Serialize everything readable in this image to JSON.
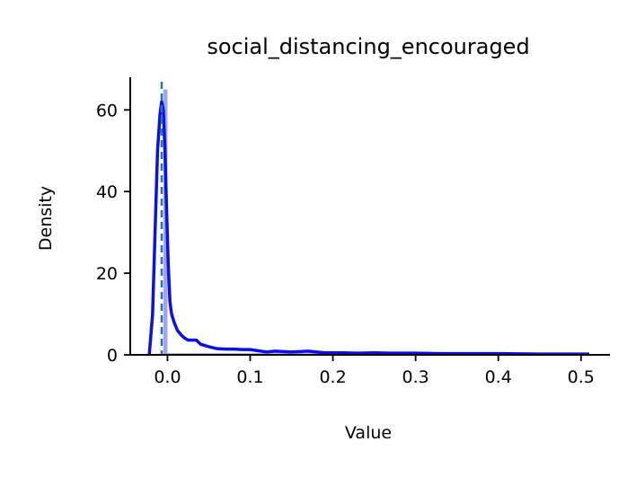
{
  "chart_data": {
    "type": "area",
    "title": "social_distancing_encouraged",
    "xlabel": "Value",
    "ylabel": "Density",
    "xlim": [
      -0.045,
      0.535
    ],
    "ylim": [
      0,
      68
    ],
    "xticks": [
      0.0,
      0.1,
      0.2,
      0.3,
      0.4,
      0.5
    ],
    "xtick_labels": [
      "0.0",
      "0.1",
      "0.2",
      "0.3",
      "0.4",
      "0.5"
    ],
    "yticks": [
      0,
      20,
      40,
      60
    ],
    "ytick_labels": [
      "0",
      "20",
      "40",
      "60"
    ],
    "grid": false,
    "histogram": {
      "color": "#a3a3f5",
      "bins": [
        {
          "x0": -0.005,
          "x1": 0.0,
          "value": 65
        }
      ],
      "tail_level": 0.4,
      "tail_range": [
        0.0,
        0.51
      ]
    },
    "kde": {
      "color": "#0a10e8",
      "x": [
        -0.022,
        -0.018,
        -0.015,
        -0.012,
        -0.009,
        -0.007,
        -0.005,
        -0.003,
        -0.001,
        0.001,
        0.003,
        0.005,
        0.008,
        0.012,
        0.016,
        0.02,
        0.025,
        0.03,
        0.035,
        0.04,
        0.05,
        0.06,
        0.07,
        0.08,
        0.09,
        0.1,
        0.11,
        0.12,
        0.13,
        0.15,
        0.17,
        0.19,
        0.21,
        0.23,
        0.25,
        0.27,
        0.3,
        0.33,
        0.36,
        0.4,
        0.45,
        0.5,
        0.51
      ],
      "y": [
        0,
        10,
        30,
        50,
        59,
        62,
        60,
        50,
        35,
        22,
        13,
        10,
        8,
        6,
        5,
        4.2,
        3.6,
        3.6,
        3.6,
        2.6,
        2.0,
        1.5,
        1.4,
        1.4,
        1.3,
        1.3,
        1.0,
        0.7,
        0.9,
        0.7,
        0.9,
        0.5,
        0.5,
        0.4,
        0.5,
        0.4,
        0.4,
        0.3,
        0.3,
        0.3,
        0.2,
        0.2,
        0.2
      ]
    },
    "reference_line": {
      "x": -0.007,
      "color": "#1f77b4",
      "style": "dashed"
    }
  }
}
